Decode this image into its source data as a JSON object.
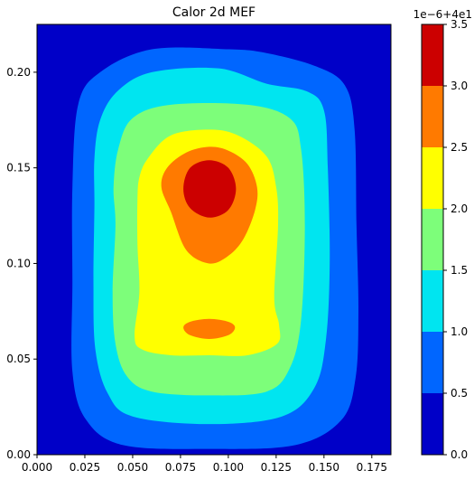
{
  "chart_data": {
    "type": "contour",
    "title": "Calor 2d MEF",
    "xlabel": "",
    "ylabel": "",
    "xlim": [
      0.0,
      0.185
    ],
    "ylim": [
      0.0,
      0.225
    ],
    "x_ticks": [
      0.0,
      0.025,
      0.05,
      0.075,
      0.1,
      0.125,
      0.15,
      0.175
    ],
    "x_tick_labels": [
      "0.000",
      "0.025",
      "0.050",
      "0.075",
      "0.100",
      "0.125",
      "0.150",
      "0.175"
    ],
    "y_ticks": [
      0.0,
      0.05,
      0.1,
      0.15,
      0.2
    ],
    "y_tick_labels": [
      "0.00",
      "0.05",
      "0.10",
      "0.15",
      "0.20"
    ],
    "grid": false,
    "colormap": "jet",
    "colorbar": {
      "offset_label": "1e−6+4e1",
      "levels": [
        0.0,
        0.5,
        1.0,
        1.5,
        2.0,
        2.5,
        3.0,
        3.5
      ],
      "tick_labels": [
        "0.0",
        "0.5",
        "1.0",
        "1.5",
        "2.0",
        "2.5",
        "3.0",
        "3.5"
      ],
      "colors": [
        "#0000c8",
        "#0066ff",
        "#00e5f0",
        "#7dfe7a",
        "#ffff00",
        "#ff7a00",
        "#cc0000"
      ]
    },
    "contour_bands": [
      {
        "level_min": 0.0,
        "level_max": 0.5,
        "color": "#0000c8",
        "region": [
          [
            0.0,
            0.0
          ],
          [
            0.185,
            0.0
          ],
          [
            0.185,
            0.225
          ],
          [
            0.0,
            0.225
          ]
        ]
      },
      {
        "level_min": 0.5,
        "level_max": 1.0,
        "color": "#0066ff",
        "region": [
          [
            0.0185,
            0.0435
          ],
          [
            0.0255,
            0.0185
          ],
          [
            0.045,
            0.005
          ],
          [
            0.09,
            0.003
          ],
          [
            0.135,
            0.005
          ],
          [
            0.159,
            0.018
          ],
          [
            0.1665,
            0.04
          ],
          [
            0.168,
            0.075
          ],
          [
            0.167,
            0.12
          ],
          [
            0.166,
            0.17
          ],
          [
            0.161,
            0.193
          ],
          [
            0.146,
            0.203
          ],
          [
            0.12,
            0.21
          ],
          [
            0.1,
            0.212
          ],
          [
            0.06,
            0.212
          ],
          [
            0.033,
            0.2
          ],
          [
            0.0215,
            0.183
          ],
          [
            0.0185,
            0.14
          ],
          [
            0.0185,
            0.09
          ]
        ]
      },
      {
        "level_min": 1.0,
        "level_max": 1.5,
        "color": "#00e5f0",
        "region": [
          [
            0.03,
            0.13
          ],
          [
            0.0295,
            0.09
          ],
          [
            0.0305,
            0.055
          ],
          [
            0.037,
            0.032
          ],
          [
            0.05,
            0.02
          ],
          [
            0.09,
            0.016
          ],
          [
            0.128,
            0.02
          ],
          [
            0.145,
            0.035
          ],
          [
            0.151,
            0.06
          ],
          [
            0.153,
            0.1
          ],
          [
            0.152,
            0.15
          ],
          [
            0.15,
            0.18
          ],
          [
            0.141,
            0.19
          ],
          [
            0.12,
            0.194
          ],
          [
            0.095,
            0.202
          ],
          [
            0.06,
            0.2
          ],
          [
            0.042,
            0.19
          ],
          [
            0.033,
            0.175
          ],
          [
            0.03,
            0.155
          ]
        ]
      },
      {
        "level_min": 1.5,
        "level_max": 2.0,
        "color": "#7dfe7a",
        "region": [
          [
            0.041,
            0.12
          ],
          [
            0.0395,
            0.085
          ],
          [
            0.041,
            0.058
          ],
          [
            0.047,
            0.041
          ],
          [
            0.06,
            0.033
          ],
          [
            0.09,
            0.031
          ],
          [
            0.12,
            0.033
          ],
          [
            0.132,
            0.045
          ],
          [
            0.138,
            0.07
          ],
          [
            0.14,
            0.12
          ],
          [
            0.138,
            0.16
          ],
          [
            0.132,
            0.176
          ],
          [
            0.11,
            0.183
          ],
          [
            0.07,
            0.183
          ],
          [
            0.05,
            0.176
          ],
          [
            0.0425,
            0.16
          ],
          [
            0.04,
            0.14
          ]
        ]
      },
      {
        "level_min": 2.0,
        "level_max": 2.5,
        "color": "#ffff00",
        "region": [
          [
            0.0525,
            0.133
          ],
          [
            0.0525,
            0.11
          ],
          [
            0.0535,
            0.085
          ],
          [
            0.051,
            0.062
          ],
          [
            0.055,
            0.055
          ],
          [
            0.07,
            0.052
          ],
          [
            0.09,
            0.052
          ],
          [
            0.11,
            0.052
          ],
          [
            0.1255,
            0.058
          ],
          [
            0.1265,
            0.068
          ],
          [
            0.124,
            0.082
          ],
          [
            0.126,
            0.12
          ],
          [
            0.125,
            0.14
          ],
          [
            0.12,
            0.156
          ],
          [
            0.105,
            0.167
          ],
          [
            0.09,
            0.17
          ],
          [
            0.07,
            0.167
          ],
          [
            0.058,
            0.155
          ],
          [
            0.0535,
            0.145
          ]
        ]
      },
      {
        "level_min": 2.5,
        "level_max": 3.0,
        "color": "#ff7a00",
        "region": [
          [
            0.065,
            0.14
          ],
          [
            0.07,
            0.127
          ],
          [
            0.078,
            0.107
          ],
          [
            0.09,
            0.1
          ],
          [
            0.1,
            0.104
          ],
          [
            0.108,
            0.113
          ],
          [
            0.114,
            0.128
          ],
          [
            0.115,
            0.14
          ],
          [
            0.11,
            0.152
          ],
          [
            0.1,
            0.159
          ],
          [
            0.09,
            0.161
          ],
          [
            0.078,
            0.158
          ],
          [
            0.068,
            0.15
          ]
        ]
      },
      {
        "level_min": 2.5,
        "level_max": 3.0,
        "color": "#ff7a00",
        "region": [
          [
            0.0765,
            0.0665
          ],
          [
            0.08,
            0.0625
          ],
          [
            0.09,
            0.0605
          ],
          [
            0.1,
            0.0625
          ],
          [
            0.1035,
            0.0665
          ],
          [
            0.1,
            0.0695
          ],
          [
            0.09,
            0.071
          ],
          [
            0.08,
            0.0695
          ]
        ]
      },
      {
        "level_min": 3.0,
        "level_max": 3.5,
        "color": "#cc0000",
        "region": [
          [
            0.0765,
            0.139
          ],
          [
            0.08,
            0.129
          ],
          [
            0.09,
            0.124
          ],
          [
            0.1,
            0.128
          ],
          [
            0.104,
            0.139
          ],
          [
            0.1,
            0.15
          ],
          [
            0.09,
            0.154
          ],
          [
            0.08,
            0.15
          ]
        ]
      }
    ]
  }
}
